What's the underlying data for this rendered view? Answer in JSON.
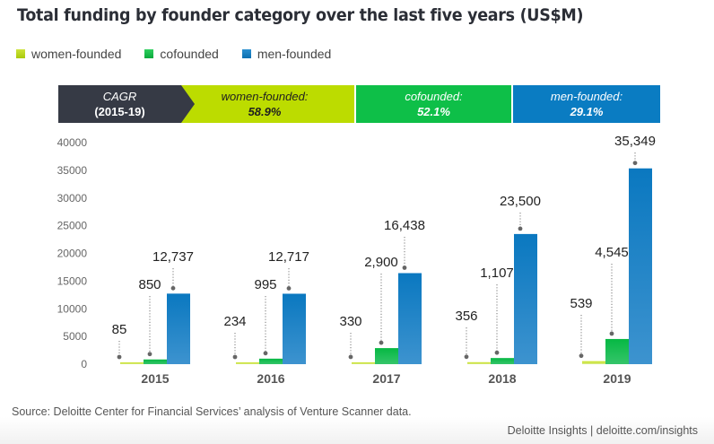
{
  "header": {
    "title": "Total funding by founder category over the last five years (US$M)"
  },
  "legend": [
    {
      "label": "women-founded",
      "color": "#bcd80b"
    },
    {
      "label": "cofounded",
      "color": "#0ebf48"
    },
    {
      "label": "men-founded",
      "color": "#0a7cc2"
    }
  ],
  "cagr_banner": {
    "heading": "CAGR",
    "period": "(2015-19)",
    "heading_color": "#363a45",
    "items": [
      {
        "label": "women-founded:",
        "value": "58.9%",
        "color": "#bcdc00",
        "text_color": "#1f1f1f"
      },
      {
        "label": "cofounded:",
        "value": "52.1%",
        "color": "#0ebf48",
        "text_color": "#ffffff"
      },
      {
        "label": "men-founded:",
        "value": "29.1%",
        "color": "#0a7cc2",
        "text_color": "#ffffff"
      }
    ]
  },
  "chart_data": {
    "type": "bar",
    "title": "Total funding by founder category over the last five years (US$M)",
    "xlabel": "",
    "ylabel": "",
    "categories": [
      "2015",
      "2016",
      "2017",
      "2018",
      "2019"
    ],
    "ylim": [
      0,
      40000
    ],
    "yticks": [
      0,
      5000,
      10000,
      15000,
      20000,
      25000,
      30000,
      35000,
      40000
    ],
    "ytick_labels": [
      "0",
      "5000",
      "10000",
      "15000",
      "20000",
      "25000",
      "30000",
      "35000",
      "40000"
    ],
    "grid": false,
    "legend_position": "top-left",
    "series": [
      {
        "name": "women-founded",
        "color": "#bcd80b",
        "values": [
          85,
          234,
          330,
          356,
          539
        ],
        "labels": [
          "85",
          "234",
          "330",
          "356",
          "539"
        ]
      },
      {
        "name": "cofounded",
        "color": "#0ebf48",
        "values": [
          850,
          995,
          2900,
          1107,
          4545
        ],
        "labels": [
          "850",
          "995",
          "2,900",
          "1,107",
          "4,545"
        ]
      },
      {
        "name": "men-founded",
        "color": "#0a7cc2",
        "values": [
          12737,
          12717,
          16438,
          23500,
          35349
        ],
        "labels": [
          "12,737",
          "12,717",
          "16,438",
          "23,500",
          "35,349"
        ]
      }
    ]
  },
  "footer": {
    "source": "Source: Deloitte Center for Financial Services’ analysis of Venture Scanner data.",
    "credit": "Deloitte Insights | deloitte.com/insights"
  }
}
